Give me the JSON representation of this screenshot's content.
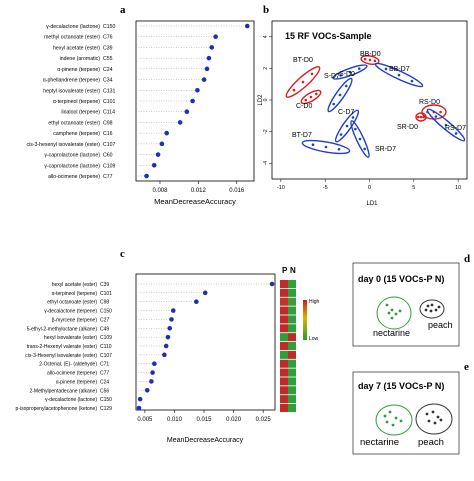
{
  "chart_data": [
    {
      "panel": "a",
      "type": "scatter",
      "xlabel": "MeanDecreaseAccuracy",
      "xticks": [
        0.008,
        0.012,
        0.016
      ],
      "xlim": [
        0.0055,
        0.0178
      ],
      "labels": [
        "γ-decalactone (lactone)",
        "methyl octanoate (ester)",
        "hexyl acetate (ester)",
        "indene (aromatic)",
        "α-pinene (terpene)",
        "α-phellandrene (terpene)",
        "heptyl isovalerate (ester)",
        "α-terpineol (terpene)",
        "linalool (terpene)",
        "ethyl octanoate (ester)",
        "camphene (terpene)",
        "cis-3-hexenyl isovalerate (ester)",
        "γ-caprolactone (lactone)",
        "γ-caprolactone (lactone)",
        "allo-ocimene (terpene)"
      ],
      "codes": [
        "C150",
        "C76",
        "C39",
        "C55",
        "C24",
        "C34",
        "C131",
        "C101",
        "C114",
        "C98",
        "C16",
        "C107",
        "C60",
        "C109",
        "C77"
      ],
      "values": [
        0.0171,
        0.0138,
        0.0134,
        0.0131,
        0.0129,
        0.0126,
        0.0119,
        0.0114,
        0.0108,
        0.0101,
        0.0087,
        0.0082,
        0.0078,
        0.0074,
        0.0066
      ]
    },
    {
      "panel": "b",
      "type": "scatter",
      "title": "15 RF VOCs-Sample",
      "xlabel": "LD1",
      "ylabel": "LD2",
      "xticks": [
        -10,
        -5,
        0,
        5,
        10
      ],
      "yticks": [
        -4,
        -2,
        0,
        2,
        4
      ],
      "groups": [
        {
          "name": "BT-D0",
          "color": "#d61e1e"
        },
        {
          "name": "S-D0",
          "color": "#1b3fc7"
        },
        {
          "name": "BB-D0",
          "color": "#d61e1e"
        },
        {
          "name": "BB-D7",
          "color": "#1b3fc7"
        },
        {
          "name": "C-D0",
          "color": "#d61e1e"
        },
        {
          "name": "S-D7",
          "color": "#1b3fc7"
        },
        {
          "name": "C-D7",
          "color": "#1b3fc7"
        },
        {
          "name": "RS-D0",
          "color": "#d61e1e"
        },
        {
          "name": "SR-D0",
          "color": "#d61e1e"
        },
        {
          "name": "RS-D7",
          "color": "#1b3fc7"
        },
        {
          "name": "BT-D7",
          "color": "#1b3fc7"
        },
        {
          "name": "SR-D7",
          "color": "#1b3fc7"
        }
      ]
    },
    {
      "panel": "c",
      "type": "scatter",
      "xlabel": "MeanDecreaseAccuracy",
      "xticks": [
        0.005,
        0.01,
        0.015,
        0.02,
        0.025
      ],
      "xtick_labels": [
        "0.005",
        "0.010",
        "0.015",
        "0.020",
        "0.025"
      ],
      "xlim": [
        0.0035,
        0.027
      ],
      "labels": [
        "hexyl acetate (ester)",
        "α-terpineol (terpene)",
        "ethyl octanoate (ester)",
        "γ-decalactone (terpene)",
        "β-myrcene (terpene)",
        "5-ethyl-2-methyloctane (alkane)",
        "hexyl isovalerate (ester)",
        "trans-2-Hexenyl valerate (ester)",
        "cis-3-Hexenyl isovalerate (ester)",
        "2-Octenal, (E)- (aldehyde)",
        "allo-ocimene (terpene)",
        "α-pinene (terpene)",
        "2-Methylpentadecane (alkane)",
        "γ-decalactone (lactone)",
        "p-isopropenylacetophenone (ketone)"
      ],
      "codes": [
        "C39",
        "C101",
        "C98",
        "C150",
        "C27",
        "C49",
        "C109",
        "C110",
        "C107",
        "C71",
        "C77",
        "C24",
        "C56",
        "C150",
        "C129"
      ],
      "values": [
        0.0265,
        0.0152,
        0.0137,
        0.0098,
        0.0095,
        0.0092,
        0.0089,
        0.0086,
        0.0083,
        0.0066,
        0.0063,
        0.0061,
        0.0054,
        0.0042,
        0.004
      ],
      "heatmap_columns": [
        "P",
        "N"
      ],
      "legend": {
        "high": "High",
        "low": "Low"
      },
      "heatmap": [
        [
          "#bd2c26",
          "#2f9e3c"
        ],
        [
          "#bd2c26",
          "#2f9e3c"
        ],
        [
          "#c0362e",
          "#3c9c3d"
        ],
        [
          "#bd2c26",
          "#2f9e3c"
        ],
        [
          "#bd2c26",
          "#2f9e3c"
        ],
        [
          "#bd2c26",
          "#2f9e3c"
        ],
        [
          "#2f9e3c",
          "#bd2c26"
        ],
        [
          "#bd2c26",
          "#2f9e3c"
        ],
        [
          "#2f9e3c",
          "#bd2c26"
        ],
        [
          "#bd2c26",
          "#2f9e3c"
        ],
        [
          "#bd2c26",
          "#2f9e3c"
        ],
        [
          "#bd2c26",
          "#2f9e3c"
        ],
        [
          "#bd2c26",
          "#2f9e3c"
        ],
        [
          "#bd2c26",
          "#2f9e3c"
        ],
        [
          "#bd2c26",
          "#2f9e3c"
        ]
      ]
    },
    {
      "panel": "d",
      "type": "scatter",
      "title": "day 0 (15 VOCs-P N)",
      "groups": [
        {
          "name": "nectarine",
          "color": "#2e9e3a"
        },
        {
          "name": "peach",
          "color": "#333333"
        }
      ]
    },
    {
      "panel": "e",
      "type": "scatter",
      "title": "day 7 (15 VOCs-P N)",
      "groups": [
        {
          "name": "nectarine",
          "color": "#2e9e3a"
        },
        {
          "name": "peach",
          "color": "#333333"
        }
      ]
    }
  ],
  "letters": {
    "a": "a",
    "b": "b",
    "c": "c",
    "d": "d",
    "e": "e"
  }
}
